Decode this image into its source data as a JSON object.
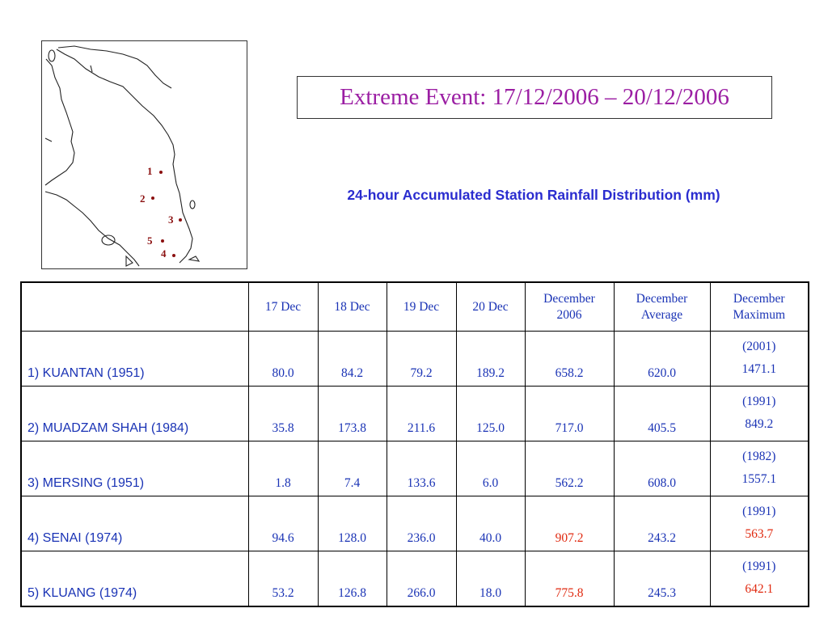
{
  "map": {
    "markers": [
      {
        "label": "1"
      },
      {
        "label": "2"
      },
      {
        "label": "3"
      },
      {
        "label": "5"
      },
      {
        "label": "4"
      }
    ]
  },
  "title": "Extreme Event: 17/12/2006 – 20/12/2006",
  "subtitle": "24-hour Accumulated Station Rainfall Distribution (mm)",
  "table": {
    "headers": {
      "station": "",
      "d17": "17 Dec",
      "d18": "18 Dec",
      "d19": "19 Dec",
      "d20": "20 Dec",
      "dec2006_1": "December",
      "dec2006_2": "2006",
      "avg_1": "December",
      "avg_2": "Average",
      "max_1": "December",
      "max_2": "Maximum"
    },
    "rows": [
      {
        "station": "1) KUANTAN  (1951)",
        "d17": "80.0",
        "d18": "84.2",
        "d19": "79.2",
        "d20": "189.2",
        "dec2006": "658.2",
        "avg": "620.0",
        "max_year": "(2001)",
        "max": "1471.1"
      },
      {
        "station": "2) MUADZAM SHAH  (1984)",
        "d17": "35.8",
        "d18": "173.8",
        "d19": "211.6",
        "d20": "125.0",
        "dec2006": "717.0",
        "avg": "405.5",
        "max_year": "(1991)",
        "max": "849.2"
      },
      {
        "station": "3) MERSING  (1951)",
        "d17": "1.8",
        "d18": "7.4",
        "d19": "133.6",
        "d20": "6.0",
        "dec2006": "562.2",
        "avg": "608.0",
        "max_year": "(1982)",
        "max": "1557.1"
      },
      {
        "station": "4) SENAI  (1974)",
        "d17": "94.6",
        "d18": "128.0",
        "d19": "236.0",
        "d20": "40.0",
        "dec2006": "907.2",
        "avg": "243.2",
        "max_year": "(1991)",
        "max": "563.7"
      },
      {
        "station": "5) KLUANG  (1974)",
        "d17": "53.2",
        "d18": "126.8",
        "d19": "266.0",
        "d20": "18.0",
        "dec2006": "775.8",
        "avg": "245.3",
        "max_year": "(1991)",
        "max": "642.1"
      }
    ]
  },
  "colors": {
    "title": "#9b1ea3",
    "subtitle": "#2a2ccf",
    "table_text": "#1a33b5",
    "highlight": "#e02a10",
    "marker": "#8b1010"
  }
}
